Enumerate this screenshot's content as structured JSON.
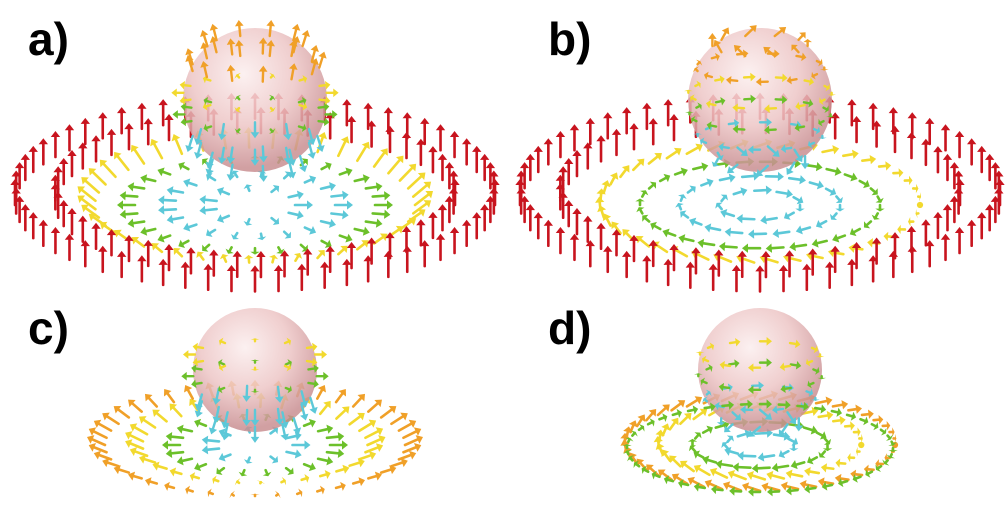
{
  "panels": [
    {
      "id": "a",
      "label": "a)"
    },
    {
      "id": "b",
      "label": "b)"
    },
    {
      "id": "c",
      "label": "c)"
    },
    {
      "id": "d",
      "label": "d)"
    }
  ],
  "colors": {
    "red": "#c8141e",
    "orange": "#f0a028",
    "yellow": "#f2d92e",
    "green": "#6cc02a",
    "cyan": "#5cc8d8",
    "blue": "#2c7ad0",
    "sphere": "#e8b8b8"
  }
}
